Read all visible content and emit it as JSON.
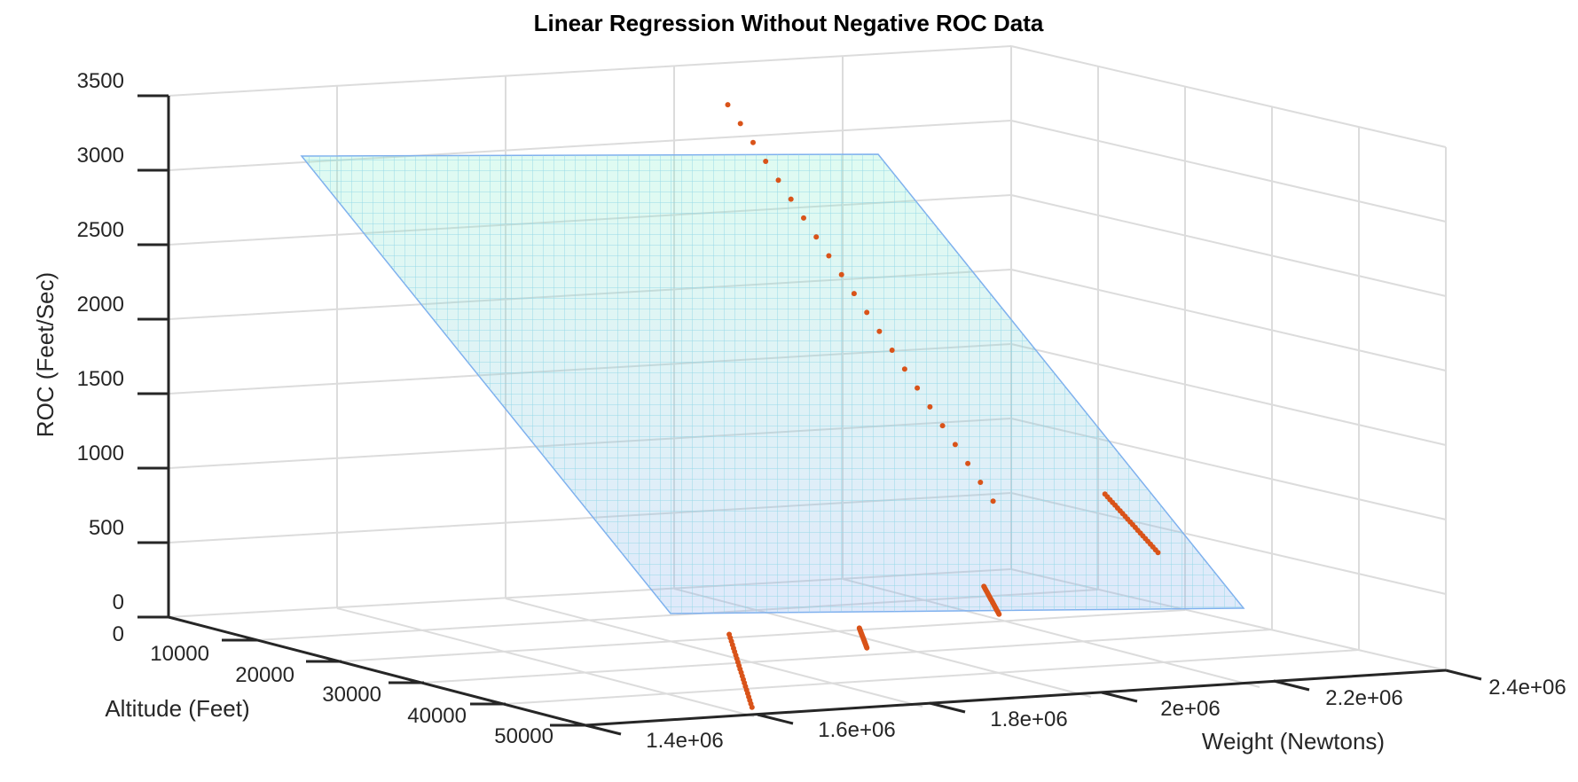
{
  "chart_data": {
    "type": "scatter3d-surface",
    "title": "Linear Regression Without Negative ROC Data",
    "xlabel": "Weight (Newtons)",
    "ylabel": "Altitude (Feet)",
    "zlabel": "ROC (Feet/Sec)",
    "x_ticks": [
      "1.4e+06",
      "1.6e+06",
      "1.8e+06",
      "2e+06",
      "2.2e+06",
      "2.4e+06"
    ],
    "y_ticks": [
      "0",
      "10000",
      "20000",
      "30000",
      "40000",
      "50000"
    ],
    "z_ticks": [
      "0",
      "500",
      "1000",
      "1500",
      "2000",
      "2500",
      "3000",
      "3500"
    ],
    "xlim": [
      1400000,
      2400000
    ],
    "ylim": [
      0,
      55000
    ],
    "zlim": [
      0,
      3500
    ],
    "grid": true,
    "surface": {
      "name": "regression plane",
      "corners": [
        {
          "x": 1400000,
          "y": 0,
          "z": 3000
        },
        {
          "x": 2040000,
          "y": 0,
          "z": 3000
        },
        {
          "x": 2040000,
          "y": 55000,
          "z": 0
        },
        {
          "x": 1400000,
          "y": 55000,
          "z": 0
        }
      ],
      "colors": [
        "#7ff0c8",
        "#7fa8ec"
      ]
    },
    "points_color": "#d95319",
    "point_clusters": [
      {
        "x": 2050000,
        "y_range": [
          0,
          35000
        ],
        "z_range": [
          3200,
          1000
        ]
      },
      {
        "x": 2180000,
        "y_range": [
          35000,
          42000
        ],
        "z_range": [
          1000,
          700
        ]
      },
      {
        "x": 1960000,
        "y_range": [
          44000,
          46000
        ],
        "z_range": [
          580,
          420
        ]
      },
      {
        "x": 1780000,
        "y_range": [
          48000,
          49000
        ],
        "z_range": [
          420,
          300
        ]
      },
      {
        "x": 1620000,
        "y_range": [
          49000,
          52000
        ],
        "z_range": [
          450,
          0
        ]
      }
    ]
  }
}
